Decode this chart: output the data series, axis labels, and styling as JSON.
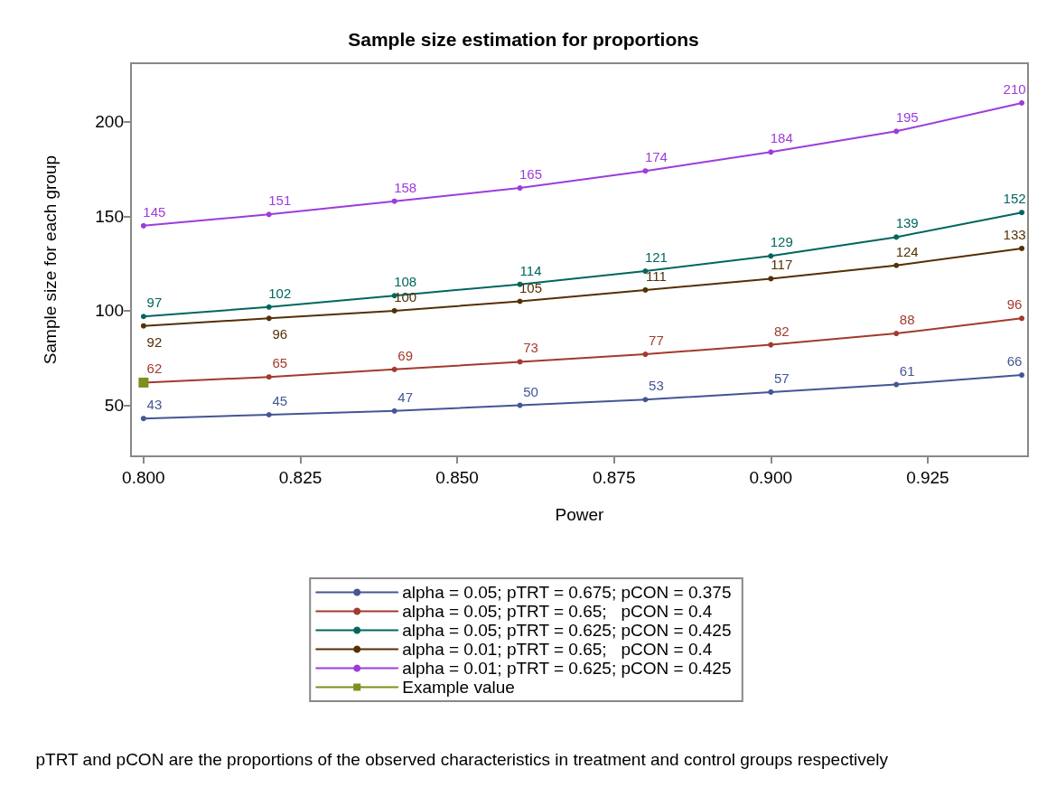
{
  "chart_data": {
    "type": "line",
    "title": "Sample size estimation for proportions",
    "xlabel": "Power",
    "ylabel": "Sample size for each group",
    "x": [
      0.8,
      0.82,
      0.84,
      0.86,
      0.88,
      0.9,
      0.92,
      0.94
    ],
    "series": [
      {
        "name": "alpha = 0.05; pTRT = 0.675; pCON = 0.375",
        "color": "#445694",
        "values": [
          43,
          45,
          47,
          50,
          53,
          57,
          61,
          66
        ]
      },
      {
        "name": "alpha = 0.05; pTRT = 0.65;   pCON = 0.4",
        "color": "#a23a2e",
        "values": [
          62,
          65,
          69,
          73,
          77,
          82,
          88,
          96
        ]
      },
      {
        "name": "alpha = 0.05; pTRT = 0.625; pCON = 0.425",
        "color": "#01665e",
        "values": [
          97,
          102,
          108,
          114,
          121,
          129,
          139,
          152
        ]
      },
      {
        "name": "alpha = 0.01; pTRT = 0.65;   pCON = 0.4",
        "color": "#543005",
        "values": [
          92,
          96,
          100,
          105,
          111,
          117,
          124,
          133
        ]
      },
      {
        "name": "alpha = 0.01; pTRT = 0.625; pCON = 0.425",
        "color": "#9d3cdb",
        "values": [
          145,
          151,
          158,
          165,
          174,
          184,
          195,
          210
        ]
      },
      {
        "name": "Example value",
        "color": "#7f8e1f",
        "x": [
          0.8
        ],
        "values": [
          62
        ],
        "marker": "square",
        "value_labels": [
          null
        ]
      }
    ],
    "marker": "circle",
    "line_style": "solid",
    "data_labels": true,
    "grid": false,
    "legend": "bottom",
    "xlim": [
      0.798,
      0.941
    ],
    "xticks": [
      {
        "value": 0.8,
        "label": "0.800"
      },
      {
        "value": 0.825,
        "label": "0.825"
      },
      {
        "value": 0.85,
        "label": "0.850"
      },
      {
        "value": 0.875,
        "label": "0.875"
      },
      {
        "value": 0.9,
        "label": "0.900"
      },
      {
        "value": 0.925,
        "label": "0.925"
      }
    ],
    "ylim": [
      23,
      231
    ],
    "yticks": [
      50,
      100,
      150,
      200
    ],
    "annotations": [
      "pTRT and pCON are the proportions of the observed characteristics in treatment and control groups respectively"
    ]
  }
}
